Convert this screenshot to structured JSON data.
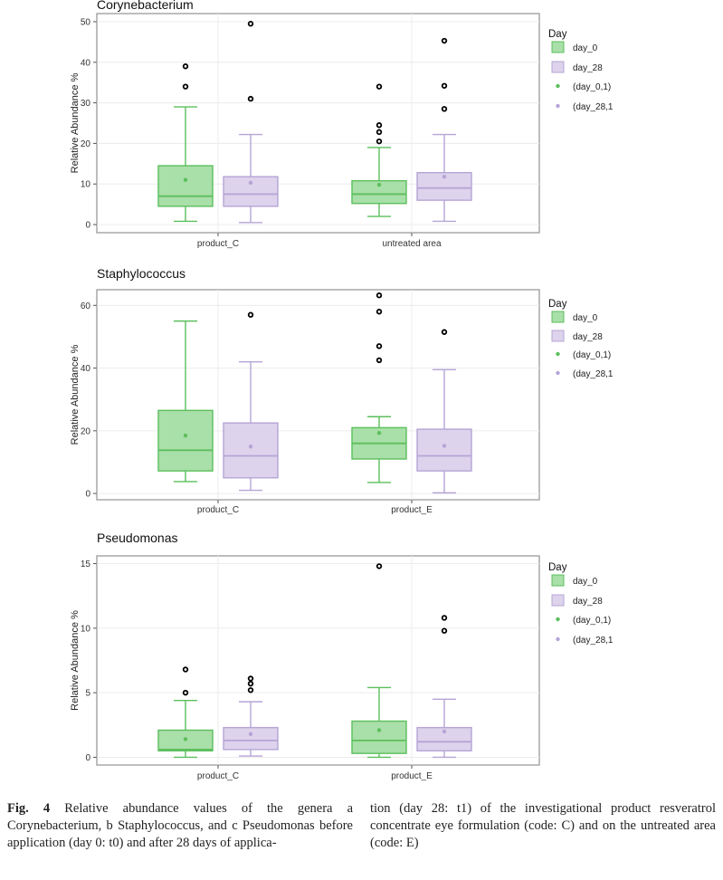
{
  "caption": {
    "fig_label": "Fig. 4",
    "col1": "Relative abundance values of the genera a Corynebacterium, b Staphylococcus, and c Pseudomonas before application (day 0: t0) and after 28 days of applica-",
    "col2": "tion (day 28: t1) of the investigational product resveratrol concentrate eye formulation (code: C) and on the untreated area (code: E)"
  },
  "colors": {
    "day_0_fill": "#a9dfa9",
    "day_0_line": "#5cbf5c",
    "day_28_fill": "#ddd3ec",
    "day_28_line": "#b5a5d6",
    "panel_border": "#9a9a9a",
    "grid": "#ececec"
  },
  "chart_data": [
    {
      "type": "box",
      "title": "Corynebacterium",
      "ylabel": "Relative Abundance %",
      "ylim": [
        -2,
        52
      ],
      "yticks": [
        0,
        10,
        20,
        30,
        40,
        50
      ],
      "categories": [
        "product_C",
        "untreated area"
      ],
      "legend": {
        "title": "Day",
        "position": "right",
        "entries": [
          "day_0",
          "day_28",
          "(day_0,1)",
          "(day_28,1"
        ]
      },
      "series": [
        {
          "name": "day_0",
          "boxes": [
            {
              "min": 0.8,
              "q1": 4.5,
              "median": 7.0,
              "q3": 14.5,
              "max": 29.0,
              "mean": 11.0,
              "outliers": [
                34.0,
                39.0
              ]
            },
            {
              "min": 2.0,
              "q1": 5.2,
              "median": 7.5,
              "q3": 10.8,
              "max": 19.0,
              "mean": 9.8,
              "outliers": [
                20.5,
                22.8,
                24.5,
                34.0
              ]
            }
          ]
        },
        {
          "name": "day_28",
          "boxes": [
            {
              "min": 0.5,
              "q1": 4.5,
              "median": 7.5,
              "q3": 11.8,
              "max": 22.2,
              "mean": 10.3,
              "outliers": [
                31.0,
                49.5
              ]
            },
            {
              "min": 0.8,
              "q1": 6.0,
              "median": 9.0,
              "q3": 12.8,
              "max": 22.2,
              "mean": 11.8,
              "outliers": [
                28.5,
                34.2,
                45.3
              ]
            }
          ]
        }
      ]
    },
    {
      "type": "box",
      "title": "Staphylococcus",
      "ylabel": "Relative Abundance %",
      "ylim": [
        -2,
        65
      ],
      "yticks": [
        0,
        20,
        40,
        60
      ],
      "categories": [
        "product_C",
        "product_E"
      ],
      "legend": {
        "title": "Day",
        "position": "right",
        "entries": [
          "day_0",
          "day_28",
          "(day_0,1)",
          "(day_28,1"
        ]
      },
      "series": [
        {
          "name": "day_0",
          "boxes": [
            {
              "min": 3.8,
              "q1": 7.2,
              "median": 13.8,
              "q3": 26.5,
              "max": 55.0,
              "mean": 18.5,
              "outliers": []
            },
            {
              "min": 3.5,
              "q1": 11.0,
              "median": 16.0,
              "q3": 21.0,
              "max": 24.5,
              "mean": 19.3,
              "outliers": [
                42.5,
                47.0,
                58.0,
                63.2
              ]
            }
          ]
        },
        {
          "name": "day_28",
          "boxes": [
            {
              "min": 1.0,
              "q1": 5.0,
              "median": 12.0,
              "q3": 22.5,
              "max": 42.0,
              "mean": 15.0,
              "outliers": [
                57.0
              ]
            },
            {
              "min": 0.2,
              "q1": 7.2,
              "median": 12.0,
              "q3": 20.5,
              "max": 39.5,
              "mean": 15.2,
              "outliers": [
                51.5
              ]
            }
          ]
        }
      ]
    },
    {
      "type": "box",
      "title": "Pseudomonas",
      "ylabel": "Relative Abundance %",
      "ylim": [
        -0.6,
        15.6
      ],
      "yticks": [
        0,
        5,
        10,
        15
      ],
      "categories": [
        "product_C",
        "product_E"
      ],
      "legend": {
        "title": "Day",
        "position": "right",
        "entries": [
          "day_0",
          "day_28",
          "(day_0,1)",
          "(day_28,1"
        ]
      },
      "series": [
        {
          "name": "day_0",
          "boxes": [
            {
              "min": 0.0,
              "q1": 0.5,
              "median": 0.6,
              "q3": 2.1,
              "max": 4.4,
              "mean": 1.4,
              "outliers": [
                5.0,
                6.8
              ]
            },
            {
              "min": 0.0,
              "q1": 0.3,
              "median": 1.3,
              "q3": 2.8,
              "max": 5.4,
              "mean": 2.1,
              "outliers": [
                14.8
              ]
            }
          ]
        },
        {
          "name": "day_28",
          "boxes": [
            {
              "min": 0.1,
              "q1": 0.6,
              "median": 1.3,
              "q3": 2.3,
              "max": 4.3,
              "mean": 1.8,
              "outliers": [
                5.2,
                5.7,
                6.1
              ]
            },
            {
              "min": 0.0,
              "q1": 0.5,
              "median": 1.2,
              "q3": 2.3,
              "max": 4.5,
              "mean": 2.0,
              "outliers": [
                9.8,
                10.8
              ]
            }
          ]
        }
      ]
    }
  ]
}
